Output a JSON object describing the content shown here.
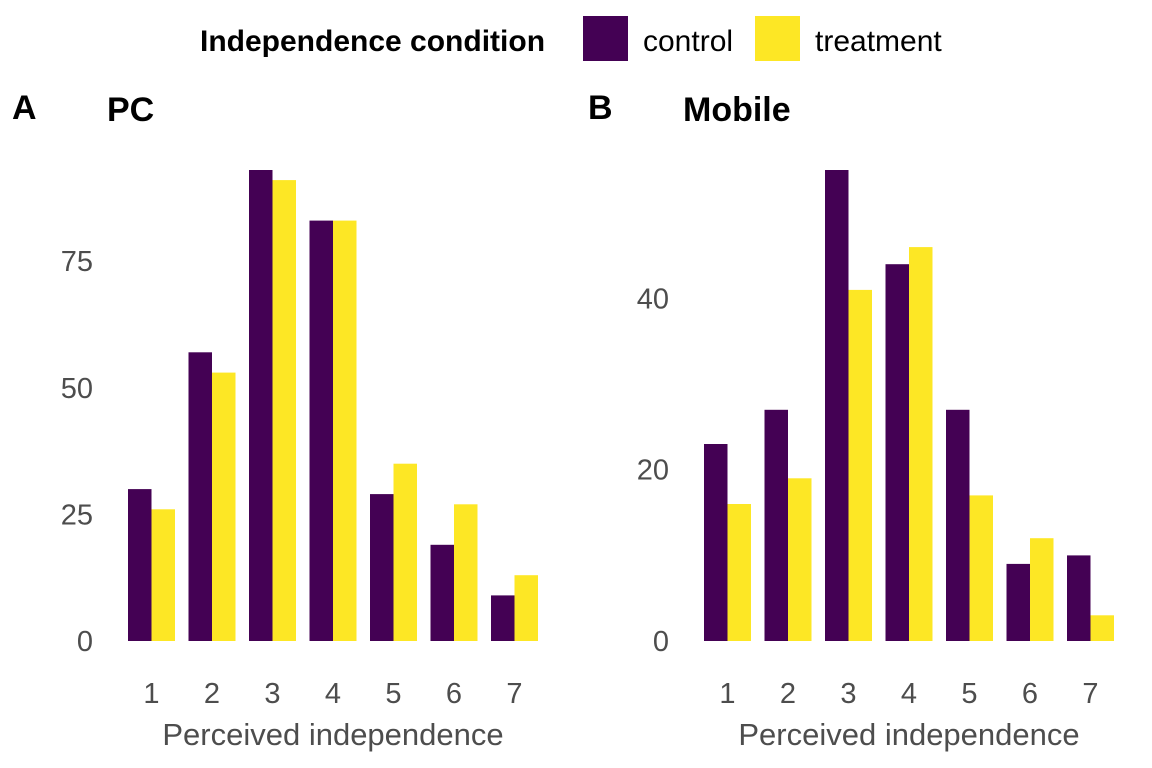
{
  "legend": {
    "title": "Independence condition",
    "items": [
      {
        "label": "control",
        "color": "#440154"
      },
      {
        "label": "treatment",
        "color": "#FDE725"
      }
    ]
  },
  "chart_data": [
    {
      "type": "bar",
      "tag": "A",
      "title": "PC",
      "xlabel": "Perceived independence",
      "ylabel": "",
      "categories": [
        "1",
        "2",
        "3",
        "4",
        "5",
        "6",
        "7"
      ],
      "series": [
        {
          "name": "control",
          "values": [
            30,
            57,
            93,
            83,
            29,
            19,
            9
          ]
        },
        {
          "name": "treatment",
          "values": [
            26,
            53,
            91,
            83,
            35,
            27,
            13
          ]
        }
      ],
      "yticks": [
        0,
        25,
        50,
        75
      ],
      "ylim": [
        0,
        93
      ],
      "grid": false,
      "legend_position": "top"
    },
    {
      "type": "bar",
      "tag": "B",
      "title": "Mobile",
      "xlabel": "Perceived independence",
      "ylabel": "",
      "categories": [
        "1",
        "2",
        "3",
        "4",
        "5",
        "6",
        "7"
      ],
      "series": [
        {
          "name": "control",
          "values": [
            23,
            27,
            55,
            44,
            27,
            9,
            10
          ]
        },
        {
          "name": "treatment",
          "values": [
            16,
            19,
            41,
            46,
            17,
            12,
            3
          ]
        }
      ],
      "yticks": [
        0,
        20,
        40
      ],
      "ylim": [
        0,
        55
      ],
      "grid": false,
      "legend_position": "top"
    }
  ]
}
